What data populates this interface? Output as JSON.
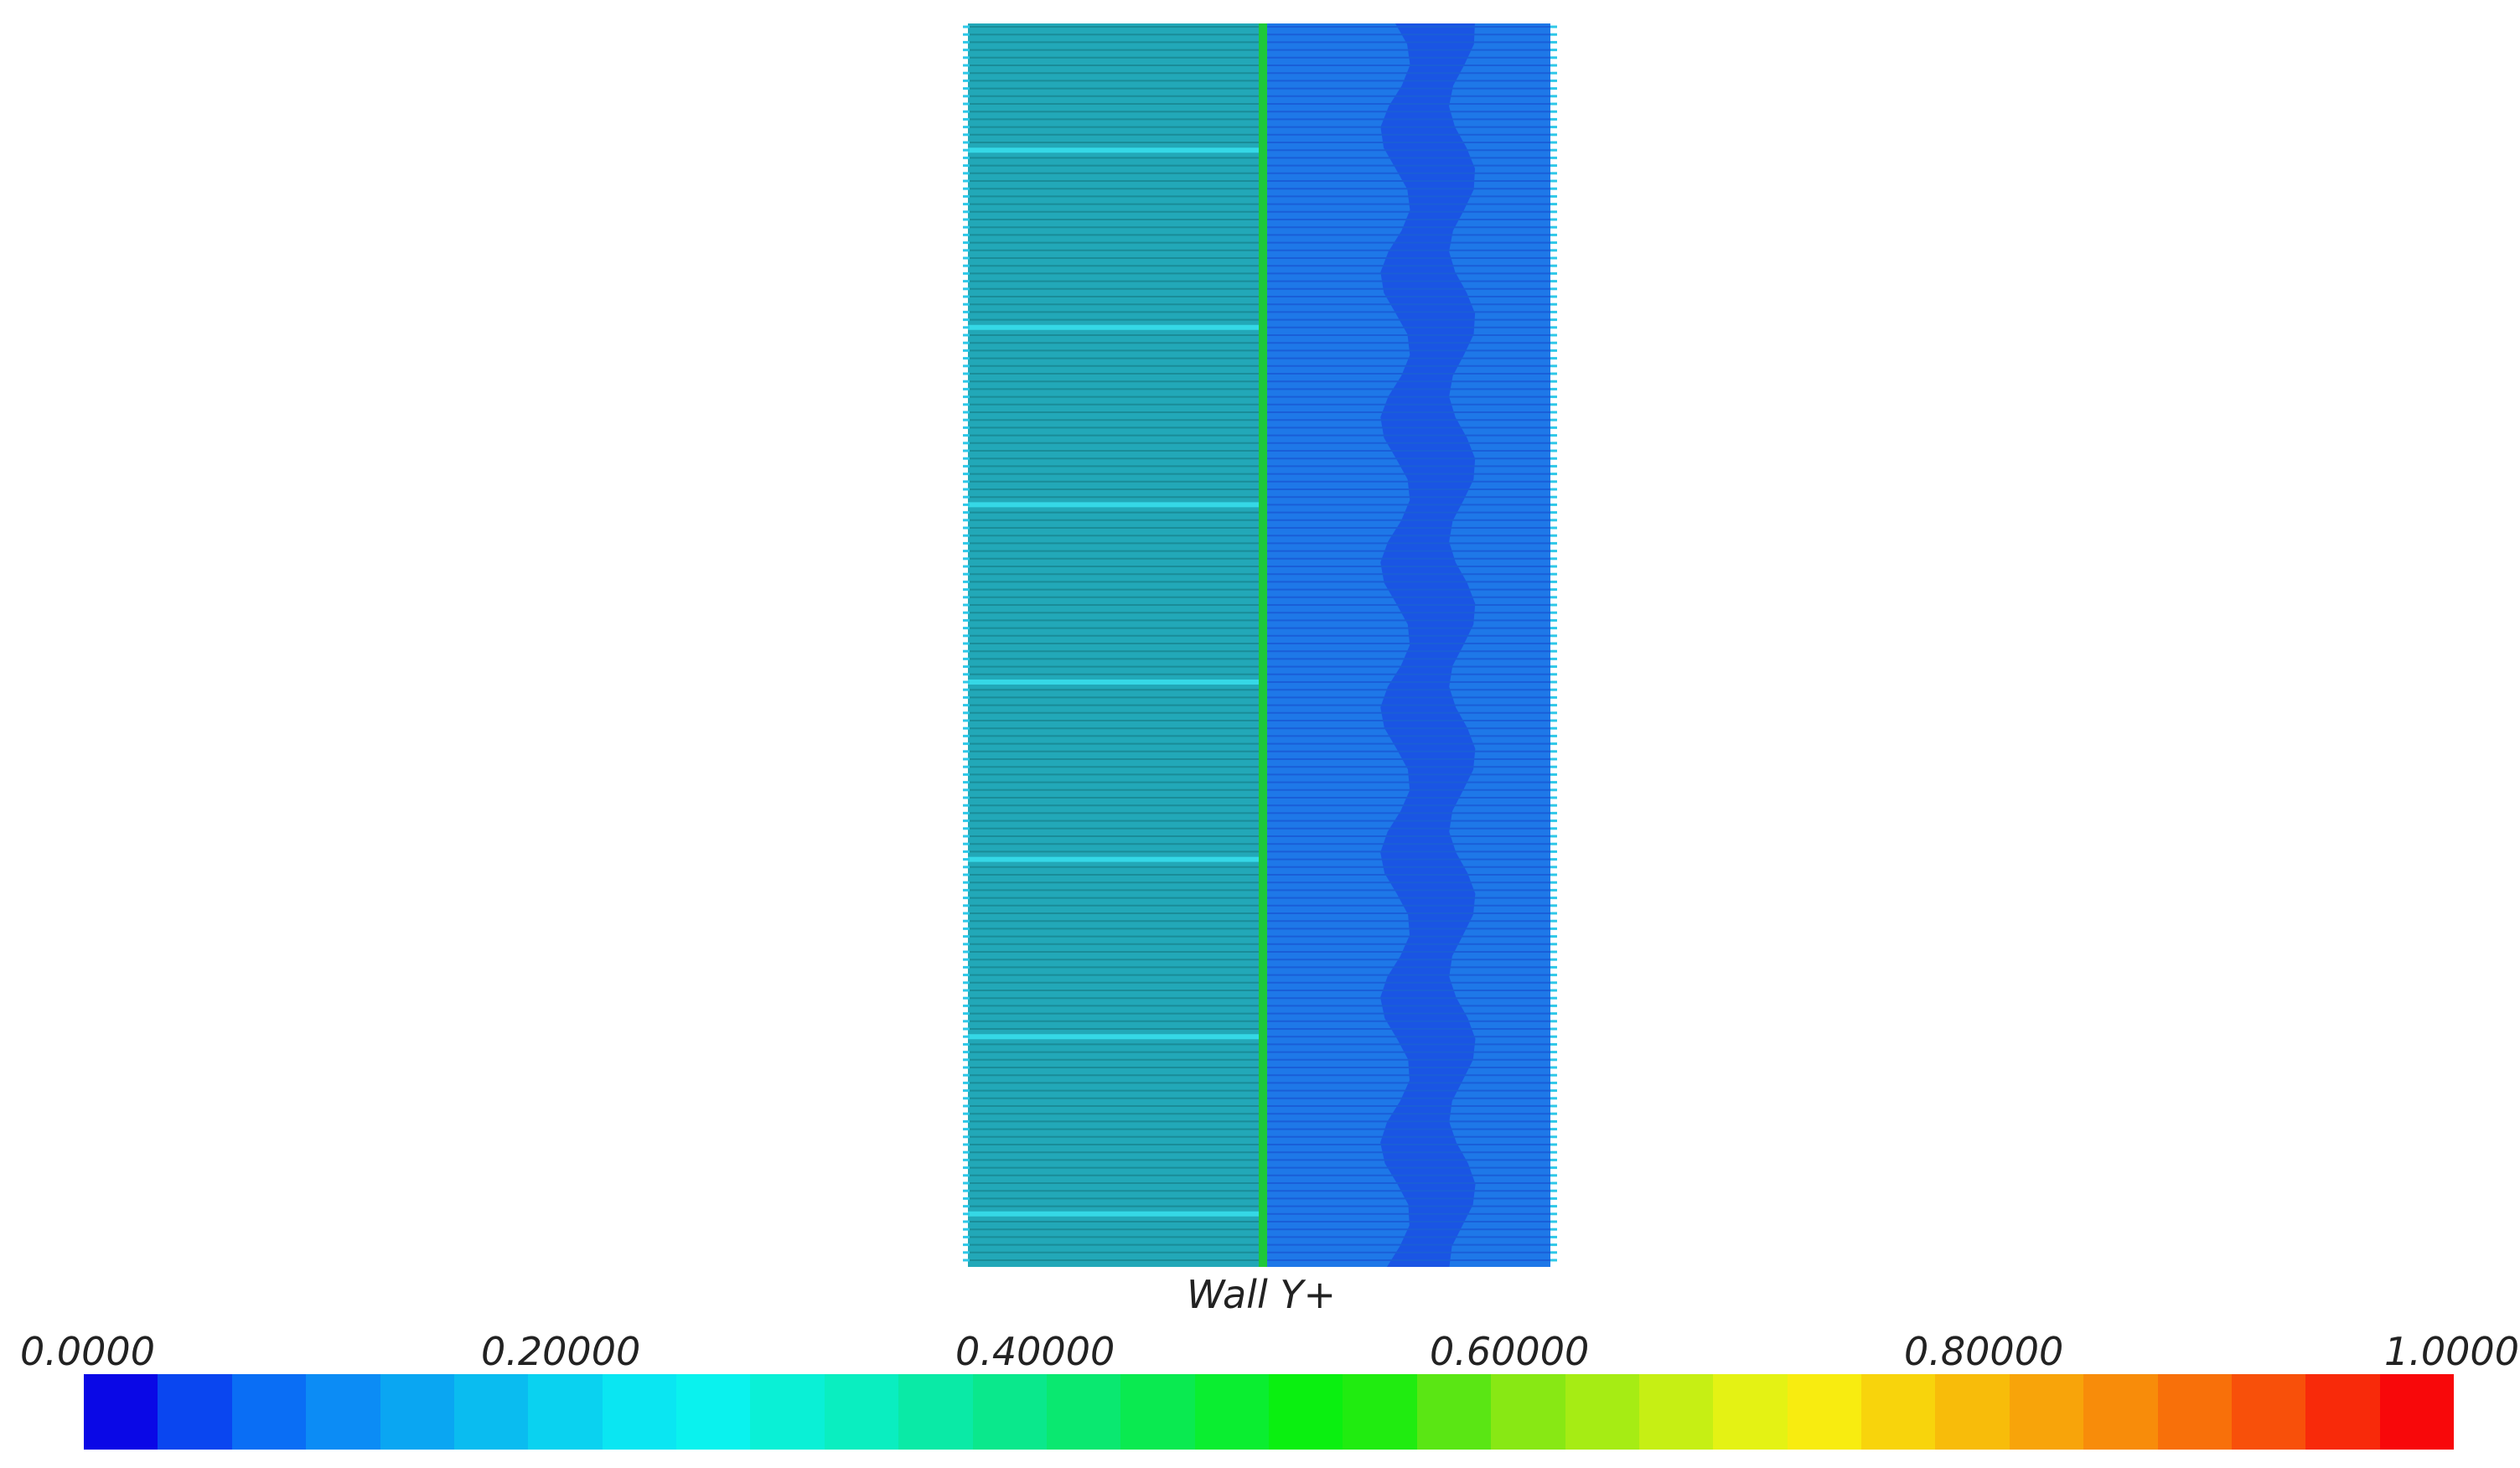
{
  "contour": {
    "variable": "Wall Y+",
    "colors": {
      "left_base": "#22a8b8",
      "left_line": "#1a8c98",
      "left_highlight": "#35d8e6",
      "seam": "#1ec83a",
      "right_base": "#1e78e8",
      "right_line": "#1a5ed8",
      "right_dark": "#1838e0",
      "edge_tick": "#2ec8e8"
    }
  },
  "colorbar": {
    "labels": [
      "0.0000",
      "0.20000",
      "0.40000",
      "0.60000",
      "0.80000",
      "1.0000"
    ],
    "min": 0.0,
    "max": 1.0,
    "bands": [
      "#0a08e6",
      "#0a46f0",
      "#0a6ef5",
      "#0c8cf5",
      "#0aa6f2",
      "#0abcf0",
      "#0ad2f0",
      "#0ae6f2",
      "#0af2ee",
      "#0af0d6",
      "#0aeec0",
      "#0aeaa6",
      "#0ae88c",
      "#0ae870",
      "#0aea50",
      "#0aee30",
      "#0af010",
      "#20ec10",
      "#5ae614",
      "#88e814",
      "#a6ec14",
      "#c6ef14",
      "#e4f214",
      "#f8ec10",
      "#f8d40c",
      "#f8bc0a",
      "#f8a40a",
      "#f88c0a",
      "#f8700a",
      "#f8500a",
      "#f82a0a",
      "#f8080a"
    ]
  }
}
